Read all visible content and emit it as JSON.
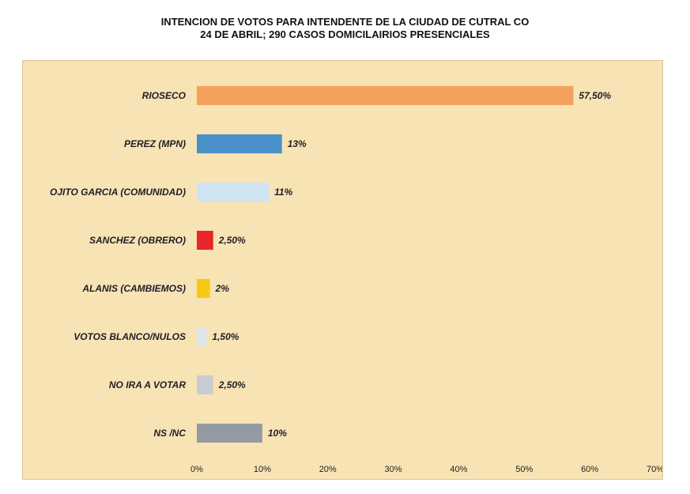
{
  "chart_data": {
    "type": "bar",
    "orientation": "horizontal",
    "title": "INTENCION DE VOTOS PARA INTENDENTE DE LA CIUDAD DE CUTRAL CO",
    "subtitle": "24 DE ABRIL; 290 CASOS DOMICILAIRIOS PRESENCIALES",
    "categories": [
      "RIOSECO",
      "PEREZ (MPN)",
      "OJITO GARCIA (COMUNIDAD)",
      "SANCHEZ (OBRERO)",
      "ALANIS (CAMBIEMOS)",
      "VOTOS BLANCO/NULOS",
      "NO IRA A VOTAR",
      "NS /NC"
    ],
    "values": [
      57.5,
      13,
      11,
      2.5,
      2,
      1.5,
      2.5,
      10
    ],
    "value_labels": [
      "57,50%",
      "13%",
      "11%",
      "2,50%",
      "2%",
      "1,50%",
      "2,50%",
      "10%"
    ],
    "colors": [
      "#f5a15e",
      "#4a90c8",
      "#cfe3f2",
      "#e8262a",
      "#f6c915",
      "#dde4ec",
      "#c9ccd3",
      "#949aa2"
    ],
    "xlim": [
      0,
      70
    ],
    "x_ticks": [
      0,
      10,
      20,
      30,
      40,
      50,
      60,
      70
    ],
    "x_tick_labels": [
      "0%",
      "10%",
      "20%",
      "30%",
      "40%",
      "50%",
      "60%",
      "70%"
    ],
    "grid": false,
    "legend": "none",
    "background_color": "#f8e3b4"
  }
}
